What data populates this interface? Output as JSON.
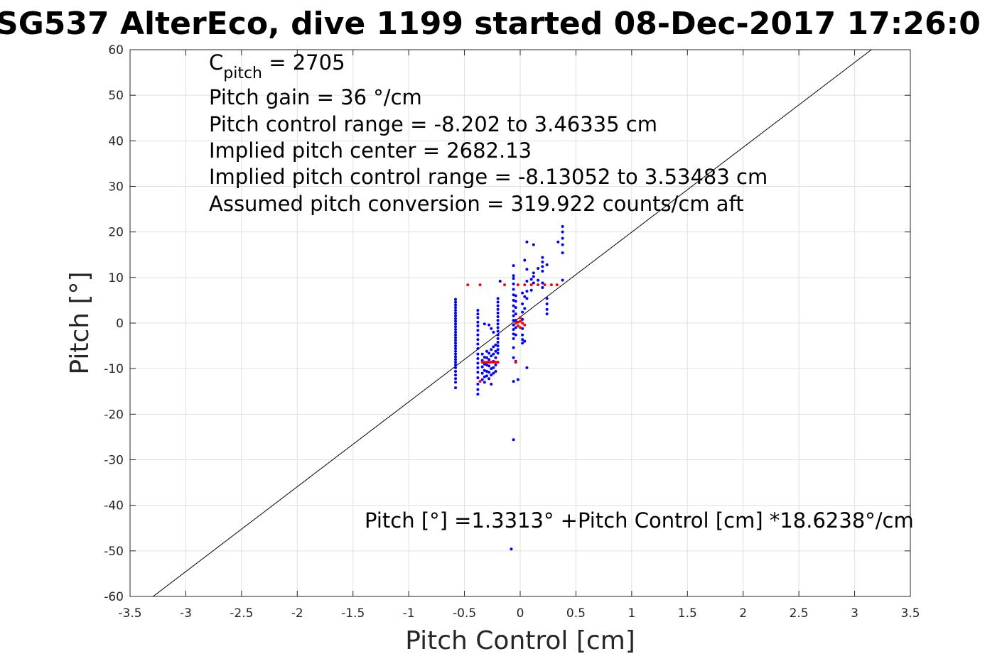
{
  "chart_data": {
    "type": "scatter",
    "title": "SG537 AlterEco, dive 1199 started 08-Dec-2017 17:26:0",
    "xlabel": "Pitch Control [cm]",
    "ylabel": "Pitch [°]",
    "xlim": [
      -3.5,
      3.5
    ],
    "ylim": [
      -60,
      60
    ],
    "grid": true,
    "x_ticks": [
      "-3.5",
      "-3",
      "-2.5",
      "-2",
      "-1.5",
      "-1",
      "-0.5",
      "0",
      "0.5",
      "1",
      "1.5",
      "2",
      "2.5",
      "3",
      "3.5"
    ],
    "y_ticks": [
      "60",
      "50",
      "40",
      "30",
      "20",
      "10",
      "0",
      "-10",
      "-20",
      "-30",
      "-40",
      "-50",
      "-60"
    ],
    "annotations": {
      "c_pitch_main": "C",
      "c_pitch_sub": "pitch",
      "c_pitch_value": " = 2705",
      "line2": "Pitch gain = 36 °/cm",
      "line3": "Pitch control range = -8.202 to 3.46335 cm",
      "line4": "Implied pitch center = 2682.13",
      "line5": "Implied pitch control range = -8.13052 to 3.53483 cm",
      "line6": "Assumed pitch conversion = 319.922 counts/cm aft",
      "fit_equation": "Pitch [°] =1.3313° +Pitch Control [cm] *18.6238°/cm"
    },
    "fit_line": {
      "intercept": 1.3313,
      "slope": 18.6238,
      "color": "#000000"
    },
    "series": [
      {
        "color": "#0000ff",
        "points": [
          [
            -0.58,
            5.2
          ],
          [
            -0.58,
            4.6
          ],
          [
            -0.58,
            4.0
          ],
          [
            -0.58,
            3.4
          ],
          [
            -0.58,
            2.8
          ],
          [
            -0.58,
            2.2
          ],
          [
            -0.58,
            1.6
          ],
          [
            -0.58,
            1.0
          ],
          [
            -0.58,
            0.4
          ],
          [
            -0.58,
            -0.2
          ],
          [
            -0.58,
            -0.8
          ],
          [
            -0.58,
            -1.4
          ],
          [
            -0.58,
            -2.0
          ],
          [
            -0.58,
            -2.6
          ],
          [
            -0.58,
            -3.2
          ],
          [
            -0.58,
            -3.8
          ],
          [
            -0.58,
            -4.4
          ],
          [
            -0.58,
            -5.0
          ],
          [
            -0.58,
            -5.6
          ],
          [
            -0.58,
            -6.2
          ],
          [
            -0.58,
            -6.8
          ],
          [
            -0.58,
            -7.4
          ],
          [
            -0.58,
            -8.0
          ],
          [
            -0.58,
            -8.6
          ],
          [
            -0.58,
            -9.2
          ],
          [
            -0.58,
            -9.8
          ],
          [
            -0.58,
            -10.6
          ],
          [
            -0.58,
            -11.4
          ],
          [
            -0.58,
            -12.2
          ],
          [
            -0.58,
            -13.0
          ],
          [
            -0.58,
            -14.2
          ],
          [
            -0.38,
            2.8
          ],
          [
            -0.38,
            2.0
          ],
          [
            -0.38,
            1.2
          ],
          [
            -0.38,
            0.2
          ],
          [
            -0.38,
            -0.6
          ],
          [
            -0.38,
            -1.6
          ],
          [
            -0.38,
            -2.6
          ],
          [
            -0.38,
            -3.6
          ],
          [
            -0.38,
            -4.6
          ],
          [
            -0.38,
            -5.6
          ],
          [
            -0.38,
            -6.8
          ],
          [
            -0.38,
            -7.8
          ],
          [
            -0.38,
            -8.8
          ],
          [
            -0.38,
            -9.8
          ],
          [
            -0.38,
            -10.8
          ],
          [
            -0.38,
            -12.0
          ],
          [
            -0.38,
            -13.4
          ],
          [
            -0.38,
            -14.6
          ],
          [
            -0.38,
            -15.6
          ],
          [
            -0.34,
            -6.8
          ],
          [
            -0.34,
            -8.2
          ],
          [
            -0.34,
            -9.6
          ],
          [
            -0.34,
            -11.0
          ],
          [
            -0.34,
            -12.4
          ],
          [
            -0.32,
            -0.2
          ],
          [
            -0.32,
            -7.5
          ],
          [
            -0.32,
            -9.0
          ],
          [
            -0.32,
            -10.4
          ],
          [
            -0.32,
            -11.8
          ],
          [
            -0.32,
            -13.0
          ],
          [
            -0.3,
            -6.2
          ],
          [
            -0.3,
            -7.6
          ],
          [
            -0.3,
            -9.2
          ],
          [
            -0.3,
            -10.6
          ],
          [
            -0.3,
            -11.6
          ],
          [
            -0.28,
            -0.4
          ],
          [
            -0.28,
            -6.6
          ],
          [
            -0.28,
            -8.0
          ],
          [
            -0.28,
            -9.4
          ],
          [
            -0.28,
            -10.8
          ],
          [
            -0.28,
            -12.2
          ],
          [
            -0.26,
            -1.2
          ],
          [
            -0.26,
            -5.8
          ],
          [
            -0.26,
            -7.2
          ],
          [
            -0.26,
            -8.6
          ],
          [
            -0.26,
            -10.0
          ],
          [
            -0.26,
            -11.4
          ],
          [
            -0.26,
            -13.4
          ],
          [
            -0.24,
            -2.0
          ],
          [
            -0.24,
            -5.2
          ],
          [
            -0.24,
            -6.8
          ],
          [
            -0.24,
            -8.4
          ],
          [
            -0.24,
            -9.8
          ],
          [
            -0.24,
            -11.0
          ],
          [
            -0.22,
            -4.8
          ],
          [
            -0.22,
            -6.2
          ],
          [
            -0.22,
            -7.6
          ],
          [
            -0.22,
            -9.2
          ],
          [
            -0.22,
            -10.6
          ],
          [
            -0.2,
            5.4
          ],
          [
            -0.2,
            4.6
          ],
          [
            -0.2,
            3.8
          ],
          [
            -0.2,
            3.0
          ],
          [
            -0.2,
            2.2
          ],
          [
            -0.2,
            1.4
          ],
          [
            -0.2,
            0.6
          ],
          [
            -0.2,
            -0.2
          ],
          [
            -0.2,
            -1.0
          ],
          [
            -0.2,
            -1.8
          ],
          [
            -0.2,
            -2.6
          ],
          [
            -0.2,
            -3.4
          ],
          [
            -0.2,
            -4.2
          ],
          [
            -0.2,
            -5.0
          ],
          [
            -0.2,
            -5.8
          ],
          [
            -0.2,
            -6.6
          ],
          [
            -0.18,
            9.2
          ],
          [
            -0.06,
            12.6
          ],
          [
            -0.06,
            10.4
          ],
          [
            -0.06,
            9.8
          ],
          [
            -0.06,
            8.6
          ],
          [
            -0.06,
            7.4
          ],
          [
            -0.06,
            6.2
          ],
          [
            -0.06,
            5.0
          ],
          [
            -0.06,
            3.8
          ],
          [
            -0.06,
            2.6
          ],
          [
            -0.06,
            1.6
          ],
          [
            -0.06,
            0.6
          ],
          [
            -0.06,
            -0.4
          ],
          [
            -0.06,
            -1.4
          ],
          [
            -0.06,
            -2.4
          ],
          [
            -0.06,
            -3.4
          ],
          [
            -0.06,
            -5.4
          ],
          [
            -0.06,
            -7.6
          ],
          [
            -0.06,
            -12.8
          ],
          [
            -0.06,
            -25.6
          ],
          [
            -0.04,
            6.0
          ],
          [
            -0.04,
            4.8
          ],
          [
            -0.04,
            3.4
          ],
          [
            -0.04,
            2.0
          ],
          [
            -0.04,
            0.6
          ],
          [
            -0.04,
            -1.0
          ],
          [
            -0.04,
            -2.6
          ],
          [
            -0.04,
            -8.4
          ],
          [
            -0.02,
            -12.4
          ],
          [
            0.02,
            6.6
          ],
          [
            0.02,
            4.2
          ],
          [
            0.02,
            2.4
          ],
          [
            0.02,
            0.8
          ],
          [
            0.02,
            -1.2
          ],
          [
            0.02,
            -2.6
          ],
          [
            0.02,
            -3.6
          ],
          [
            0.02,
            -4.4
          ],
          [
            0.04,
            13.8
          ],
          [
            0.04,
            5.8
          ],
          [
            0.04,
            3.2
          ],
          [
            0.04,
            -4.0
          ],
          [
            0.06,
            17.8
          ],
          [
            0.06,
            11.8
          ],
          [
            0.06,
            9.2
          ],
          [
            0.06,
            7.0
          ],
          [
            0.06,
            5.4
          ],
          [
            0.06,
            -9.8
          ],
          [
            0.1,
            9.6
          ],
          [
            0.1,
            7.2
          ],
          [
            0.12,
            17.2
          ],
          [
            0.12,
            11.0
          ],
          [
            0.12,
            10.2
          ],
          [
            0.12,
            8.8
          ],
          [
            0.16,
            12.0
          ],
          [
            0.16,
            9.4
          ],
          [
            0.2,
            14.4
          ],
          [
            0.2,
            13.4
          ],
          [
            0.2,
            12.4
          ],
          [
            0.2,
            11.4
          ],
          [
            0.2,
            8.8
          ],
          [
            0.2,
            7.8
          ],
          [
            0.24,
            12.8
          ],
          [
            0.24,
            5.4
          ],
          [
            0.24,
            4.2
          ],
          [
            0.24,
            3.0
          ],
          [
            0.24,
            2.0
          ],
          [
            0.34,
            17.8
          ],
          [
            0.38,
            21.2
          ],
          [
            0.38,
            20.0
          ],
          [
            0.38,
            18.6
          ],
          [
            0.38,
            17.2
          ],
          [
            0.38,
            15.4
          ],
          [
            0.38,
            9.4
          ],
          [
            -0.08,
            -49.6
          ]
        ]
      },
      {
        "color": "#ff0000",
        "points": [
          [
            -0.47,
            8.4
          ],
          [
            -0.36,
            8.4
          ],
          [
            -0.14,
            8.4
          ],
          [
            -0.02,
            8.4
          ],
          [
            0.04,
            8.4
          ],
          [
            0.1,
            8.4
          ],
          [
            0.16,
            8.4
          ],
          [
            0.22,
            8.4
          ],
          [
            0.28,
            8.4
          ],
          [
            0.33,
            8.4
          ],
          [
            -0.34,
            -8.6
          ],
          [
            -0.32,
            -8.6
          ],
          [
            -0.3,
            -8.6
          ],
          [
            -0.28,
            -8.6
          ],
          [
            -0.26,
            -8.6
          ],
          [
            -0.24,
            -8.6
          ],
          [
            -0.22,
            -8.6
          ],
          [
            -0.2,
            -8.6
          ],
          [
            -0.36,
            -12.8
          ],
          [
            -0.04,
            -8.6
          ],
          [
            -0.04,
            0.0
          ],
          [
            -0.02,
            0.2
          ],
          [
            0.0,
            0.4
          ],
          [
            0.02,
            0.0
          ],
          [
            0.04,
            -0.4
          ],
          [
            -0.02,
            -0.6
          ],
          [
            0.0,
            1.2
          ],
          [
            0.0,
            -1.0
          ]
        ]
      }
    ]
  }
}
